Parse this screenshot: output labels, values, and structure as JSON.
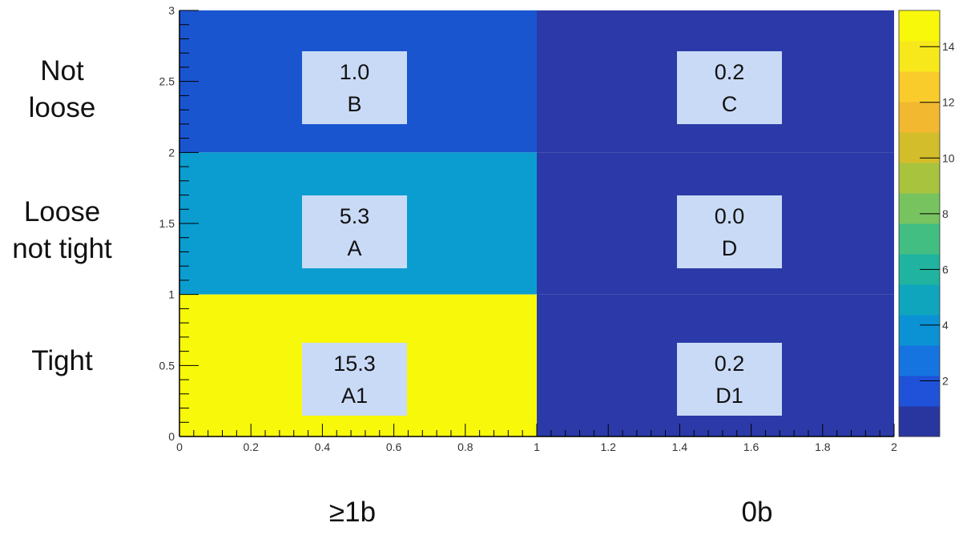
{
  "chart_data": {
    "type": "heatmap",
    "x_range": [
      0,
      2
    ],
    "y_range": [
      0,
      3
    ],
    "x_ticks": [
      "0",
      "0.2",
      "0.4",
      "0.6",
      "0.8",
      "1",
      "1.2",
      "1.4",
      "1.6",
      "1.8",
      "2"
    ],
    "y_ticks": [
      "0",
      "0.5",
      "1",
      "1.5",
      "2",
      "2.5",
      "3"
    ],
    "colorbar": {
      "range": [
        0,
        15.3
      ],
      "ticks": [
        "2",
        "4",
        "6",
        "8",
        "10",
        "12",
        "14"
      ]
    },
    "cells": [
      {
        "x": [
          0,
          1
        ],
        "y": [
          2,
          3
        ],
        "value": 1.0,
        "value_label": "1.0",
        "region": "B",
        "color": "#1a55d0"
      },
      {
        "x": [
          1,
          2
        ],
        "y": [
          2,
          3
        ],
        "value": 0.2,
        "value_label": "0.2",
        "region": "C",
        "color": "#2b3aa8"
      },
      {
        "x": [
          0,
          1
        ],
        "y": [
          1,
          2
        ],
        "value": 5.3,
        "value_label": "5.3",
        "region": "A",
        "color": "#0b9dd0"
      },
      {
        "x": [
          1,
          2
        ],
        "y": [
          1,
          2
        ],
        "value": 0.0,
        "value_label": "0.0",
        "region": "D",
        "color": "#2b3aa8"
      },
      {
        "x": [
          0,
          1
        ],
        "y": [
          0,
          1
        ],
        "value": 15.3,
        "value_label": "15.3",
        "region": "A1",
        "color": "#f8f80a"
      },
      {
        "x": [
          1,
          2
        ],
        "y": [
          0,
          1
        ],
        "value": 0.2,
        "value_label": "0.2",
        "region": "D1",
        "color": "#2b3aa8"
      }
    ]
  },
  "row_labels": [
    {
      "line1": "Not",
      "line2": "loose"
    },
    {
      "line1": "Loose",
      "line2": "not tight"
    },
    {
      "line1": "Tight",
      "line2": ""
    }
  ],
  "column_labels": [
    "≥1b",
    "0b"
  ],
  "colormap": [
    "#2a36a0",
    "#1f52d8",
    "#1674e0",
    "#0b92d4",
    "#0fa6bd",
    "#20b4a0",
    "#42be82",
    "#77c35f",
    "#a8c33e",
    "#d3bd2a",
    "#f2b830",
    "#f9cc2b",
    "#f7e81c",
    "#f8f80a"
  ]
}
